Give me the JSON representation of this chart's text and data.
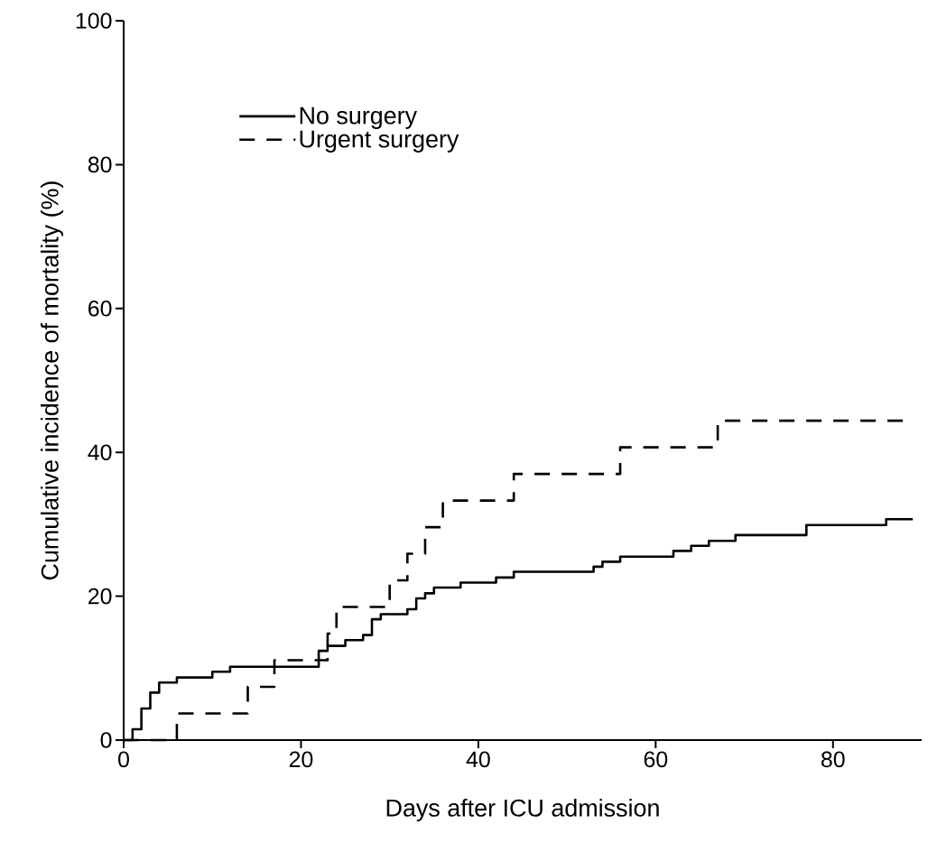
{
  "chart_data": {
    "type": "step",
    "xlabel": "Days after ICU admission",
    "ylabel": "Cumulative incidence of mortality (%)",
    "xlim": [
      0,
      90
    ],
    "ylim": [
      0,
      100
    ],
    "xticks": [
      0,
      20,
      40,
      60,
      80
    ],
    "yticks": [
      0,
      20,
      40,
      60,
      80,
      100
    ],
    "legend": "top left",
    "grid": false,
    "series": [
      {
        "name": "No surgery",
        "color": "#000000",
        "line_style": "solid",
        "x": [
          0,
          1,
          2,
          3,
          4,
          6,
          10,
          12,
          22,
          23,
          25,
          27,
          28,
          29,
          32,
          33,
          34,
          35,
          38,
          42,
          44,
          53,
          54,
          56,
          62,
          64,
          66,
          69,
          77,
          86,
          89
        ],
        "values": [
          0,
          1.5,
          4.4,
          6.6,
          8.0,
          8.7,
          9.5,
          10.2,
          12.4,
          13.1,
          13.9,
          14.6,
          16.8,
          17.5,
          18.2,
          19.7,
          20.4,
          21.2,
          21.9,
          22.6,
          23.4,
          24.1,
          24.8,
          25.5,
          26.3,
          27.0,
          27.7,
          28.5,
          29.9,
          30.7,
          30.7
        ]
      },
      {
        "name": "Urgent surgery",
        "color": "#000000",
        "line_style": "dashed",
        "x": [
          0,
          6,
          14,
          17,
          23,
          24,
          30,
          32,
          34,
          36,
          44,
          56,
          67,
          88
        ],
        "values": [
          0,
          3.7,
          7.4,
          11.1,
          14.8,
          18.5,
          22.2,
          25.9,
          29.6,
          33.3,
          37.0,
          40.7,
          44.4,
          44.4
        ]
      }
    ]
  }
}
